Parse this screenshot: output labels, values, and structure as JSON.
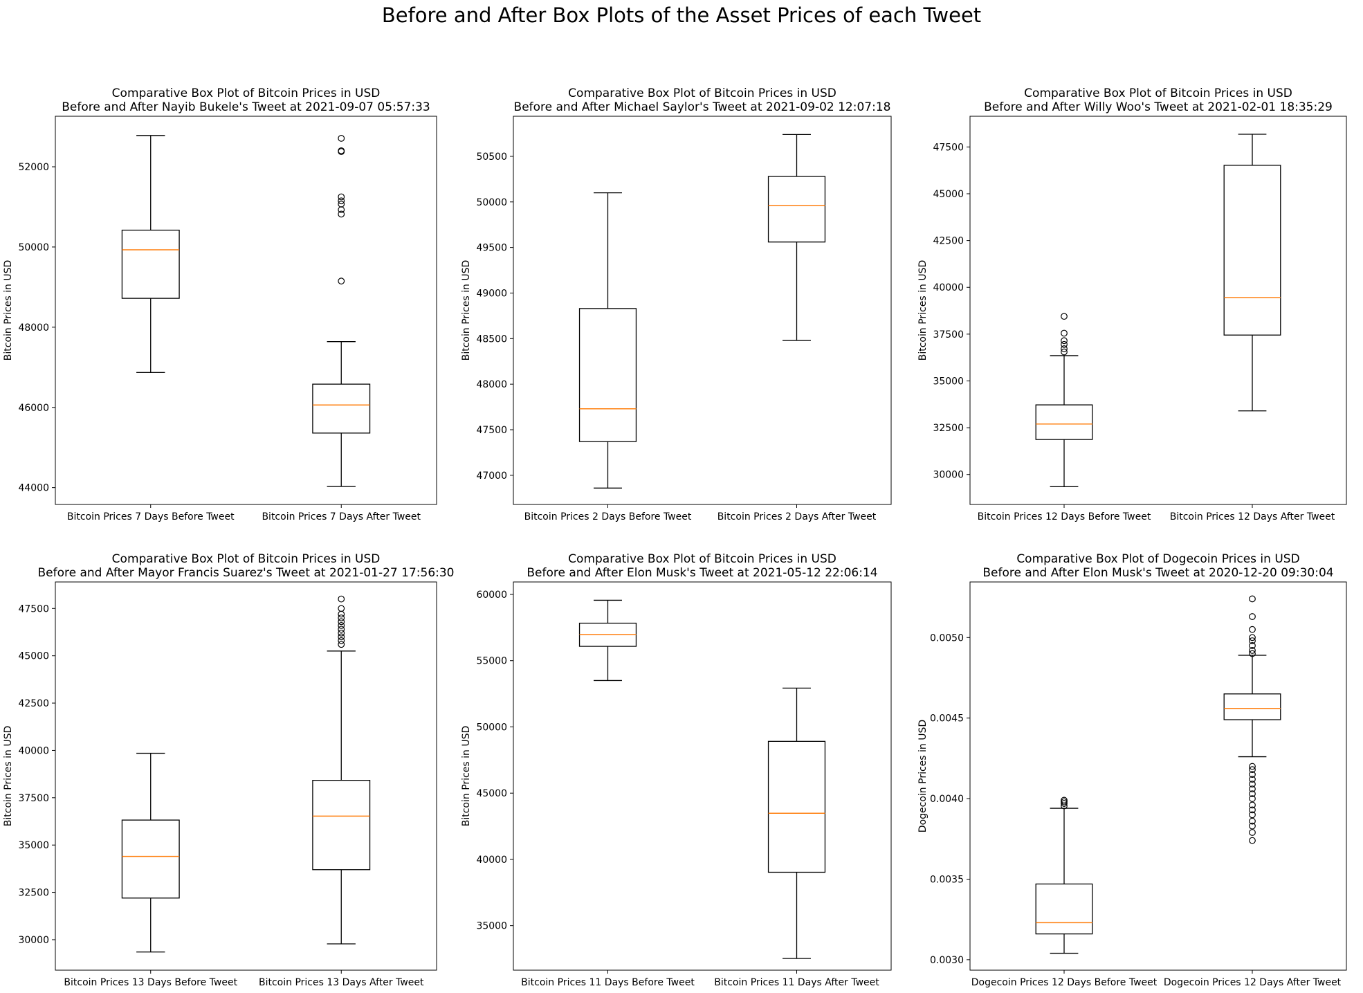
{
  "suptitle": "Before and After Box Plots of the Asset Prices of each Tweet",
  "chart_data": [
    {
      "type": "box",
      "title_line1": "Comparative Box Plot of Bitcoin Prices in USD",
      "title_line2": "Before and After Nayib Bukele's Tweet at 2021-09-07 05:57:33",
      "ylabel": "Bitcoin Prices in USD",
      "categories": [
        "Bitcoin Prices 7 Days Before Tweet",
        "Bitcoin Prices 7 Days After Tweet"
      ],
      "ylim": [
        43580,
        53260
      ],
      "yticks": [
        44000,
        46000,
        48000,
        50000,
        52000
      ],
      "yticklabels": [
        "44000",
        "46000",
        "48000",
        "50000",
        "52000"
      ],
      "boxes": [
        {
          "whislo": 46870,
          "q1": 48720,
          "med": 49930,
          "q3": 50420,
          "whishi": 52780,
          "fliers": []
        },
        {
          "whislo": 44030,
          "q1": 45360,
          "med": 46060,
          "q3": 46580,
          "whishi": 47640,
          "fliers": [
            49150,
            50820,
            50930,
            51070,
            51150,
            51250,
            52380,
            52400,
            52710
          ]
        }
      ]
    },
    {
      "type": "box",
      "title_line1": "Comparative Box Plot of Bitcoin Prices in USD",
      "title_line2": "Before and After Michael Saylor's Tweet at 2021-09-02 12:07:18",
      "ylabel": "Bitcoin Prices in USD",
      "categories": [
        "Bitcoin Prices 2 Days Before Tweet",
        "Bitcoin Prices 2 Days After Tweet"
      ],
      "ylim": [
        46680,
        50940
      ],
      "yticks": [
        47000,
        47500,
        48000,
        48500,
        49000,
        49500,
        50000,
        50500
      ],
      "yticklabels": [
        "47000",
        "47500",
        "48000",
        "48500",
        "49000",
        "49500",
        "50000",
        "50500"
      ],
      "boxes": [
        {
          "whislo": 46860,
          "q1": 47370,
          "med": 47730,
          "q3": 48830,
          "whishi": 50100,
          "fliers": []
        },
        {
          "whislo": 48480,
          "q1": 49560,
          "med": 49960,
          "q3": 50280,
          "whishi": 50740,
          "fliers": []
        }
      ]
    },
    {
      "type": "box",
      "title_line1": "Comparative Box Plot of Bitcoin Prices in USD",
      "title_line2": "Before and After Willy Woo's Tweet at 2021-02-01 18:35:29",
      "ylabel": "Bitcoin Prices in USD",
      "categories": [
        "Bitcoin Prices 12 Days Before Tweet",
        "Bitcoin Prices 12 Days After Tweet"
      ],
      "ylim": [
        28400,
        49140
      ],
      "yticks": [
        30000,
        32500,
        35000,
        37500,
        40000,
        42500,
        45000,
        47500
      ],
      "yticklabels": [
        "30000",
        "32500",
        "35000",
        "37500",
        "40000",
        "42500",
        "45000",
        "47500"
      ],
      "boxes": [
        {
          "whislo": 29350,
          "q1": 31870,
          "med": 32700,
          "q3": 33720,
          "whishi": 36350,
          "fliers": [
            36550,
            36720,
            36950,
            37150,
            37550,
            38450
          ]
        },
        {
          "whislo": 33400,
          "q1": 37450,
          "med": 39450,
          "q3": 46520,
          "whishi": 48180,
          "fliers": []
        }
      ]
    },
    {
      "type": "box",
      "title_line1": "Comparative Box Plot of Bitcoin Prices in USD",
      "title_line2": "Before and After Mayor Francis Suarez's Tweet at 2021-01-27 17:56:30",
      "ylabel": "Bitcoin Prices in USD",
      "categories": [
        "Bitcoin Prices 13 Days Before Tweet",
        "Bitcoin Prices 13 Days After Tweet"
      ],
      "ylim": [
        28390,
        48900
      ],
      "yticks": [
        30000,
        32500,
        35000,
        37500,
        40000,
        42500,
        45000,
        47500
      ],
      "yticklabels": [
        "30000",
        "32500",
        "35000",
        "37500",
        "40000",
        "42500",
        "45000",
        "47500"
      ],
      "boxes": [
        {
          "whislo": 29350,
          "q1": 32200,
          "med": 34400,
          "q3": 36320,
          "whishi": 39850,
          "fliers": []
        },
        {
          "whislo": 29780,
          "q1": 33700,
          "med": 36530,
          "q3": 38420,
          "whishi": 45250,
          "fliers": [
            45600,
            45800,
            46000,
            46200,
            46400,
            46600,
            46800,
            47000,
            47200,
            47500,
            48000
          ]
        }
      ]
    },
    {
      "type": "box",
      "title_line1": "Comparative Box Plot of Bitcoin Prices in USD",
      "title_line2": "Before and After Elon Musk's Tweet at 2021-05-12 22:06:14",
      "ylabel": "Bitcoin Prices in USD",
      "categories": [
        "Bitcoin Prices 11 Days Before Tweet",
        "Bitcoin Prices 11 Days After Tweet"
      ],
      "ylim": [
        31640,
        60940
      ],
      "yticks": [
        35000,
        40000,
        45000,
        50000,
        55000,
        60000
      ],
      "yticklabels": [
        "35000",
        "40000",
        "45000",
        "50000",
        "55000",
        "60000"
      ],
      "boxes": [
        {
          "whislo": 53500,
          "q1": 56080,
          "med": 56970,
          "q3": 57830,
          "whishi": 59560,
          "fliers": []
        },
        {
          "whislo": 32520,
          "q1": 39030,
          "med": 43480,
          "q3": 48910,
          "whishi": 52930,
          "fliers": []
        }
      ]
    },
    {
      "type": "box",
      "title_line1": "Comparative Box Plot of Dogecoin Prices in USD",
      "title_line2": "Before and After Elon Musk's Tweet at 2020-12-20 09:30:04",
      "ylabel": "Dogecoin Prices in USD",
      "categories": [
        "Dogecoin Prices 12 Days Before Tweet",
        "Dogecoin Prices 12 Days After Tweet"
      ],
      "ylim": [
        0.002935,
        0.005345
      ],
      "yticks": [
        0.003,
        0.0035,
        0.004,
        0.0045,
        0.005
      ],
      "yticklabels": [
        "0.0030",
        "0.0035",
        "0.0040",
        "0.0045",
        "0.0050"
      ],
      "boxes": [
        {
          "whislo": 0.00304,
          "q1": 0.00316,
          "med": 0.00323,
          "q3": 0.00347,
          "whishi": 0.00394,
          "fliers": [
            0.003955,
            0.00397,
            0.00398,
            0.00399
          ]
        },
        {
          "whislo": 0.00426,
          "q1": 0.00449,
          "med": 0.00456,
          "q3": 0.00465,
          "whishi": 0.00489,
          "fliers": [
            0.00374,
            0.00379,
            0.00383,
            0.00386,
            0.0039,
            0.00393,
            0.00396,
            0.004,
            0.00403,
            0.00406,
            0.00409,
            0.00412,
            0.00415,
            0.00418,
            0.0042,
            0.0049,
            0.00492,
            0.00495,
            0.00498,
            0.005,
            0.00505,
            0.00513,
            0.00524
          ]
        }
      ]
    }
  ]
}
